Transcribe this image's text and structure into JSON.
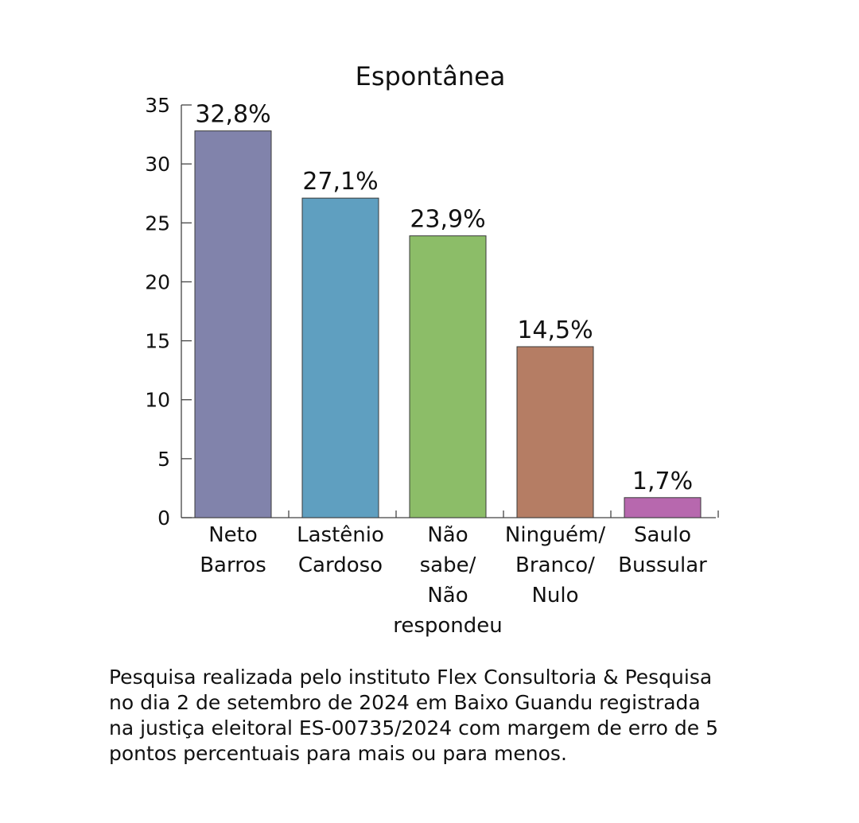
{
  "chart_data": {
    "type": "bar",
    "title": "Espontânea",
    "xlabel": "",
    "ylabel": "",
    "ylim": [
      0,
      35
    ],
    "yticks": [
      0,
      5,
      10,
      15,
      20,
      25,
      30,
      35
    ],
    "categories": [
      [
        "Neto",
        "Barros"
      ],
      [
        "Lastênio",
        "Cardoso"
      ],
      [
        "Não",
        "sabe/",
        "Não",
        "respondeu"
      ],
      [
        "Ninguém/",
        "Branco/",
        "Nulo"
      ],
      [
        "Saulo",
        "Bussular"
      ]
    ],
    "values": [
      32.8,
      27.1,
      23.9,
      14.5,
      1.7
    ],
    "data_labels": [
      "32,8%",
      "27,1%",
      "23,9%",
      "14,5%",
      "1,7%"
    ],
    "colors": [
      "#8183ab",
      "#5f9fc0",
      "#8cbd68",
      "#b57d64",
      "#b768ae"
    ],
    "grid": false,
    "legend": "none"
  },
  "footnote": {
    "lines": [
      "Pesquisa realizada pelo instituto Flex Consultoria & Pesquisa",
      "no dia 2 de setembro de 2024 em Baixo Guandu registrada",
      "na justiça eleitoral ES-00735/2024 com margem de erro de 5",
      "pontos percentuais para mais ou para menos."
    ]
  }
}
